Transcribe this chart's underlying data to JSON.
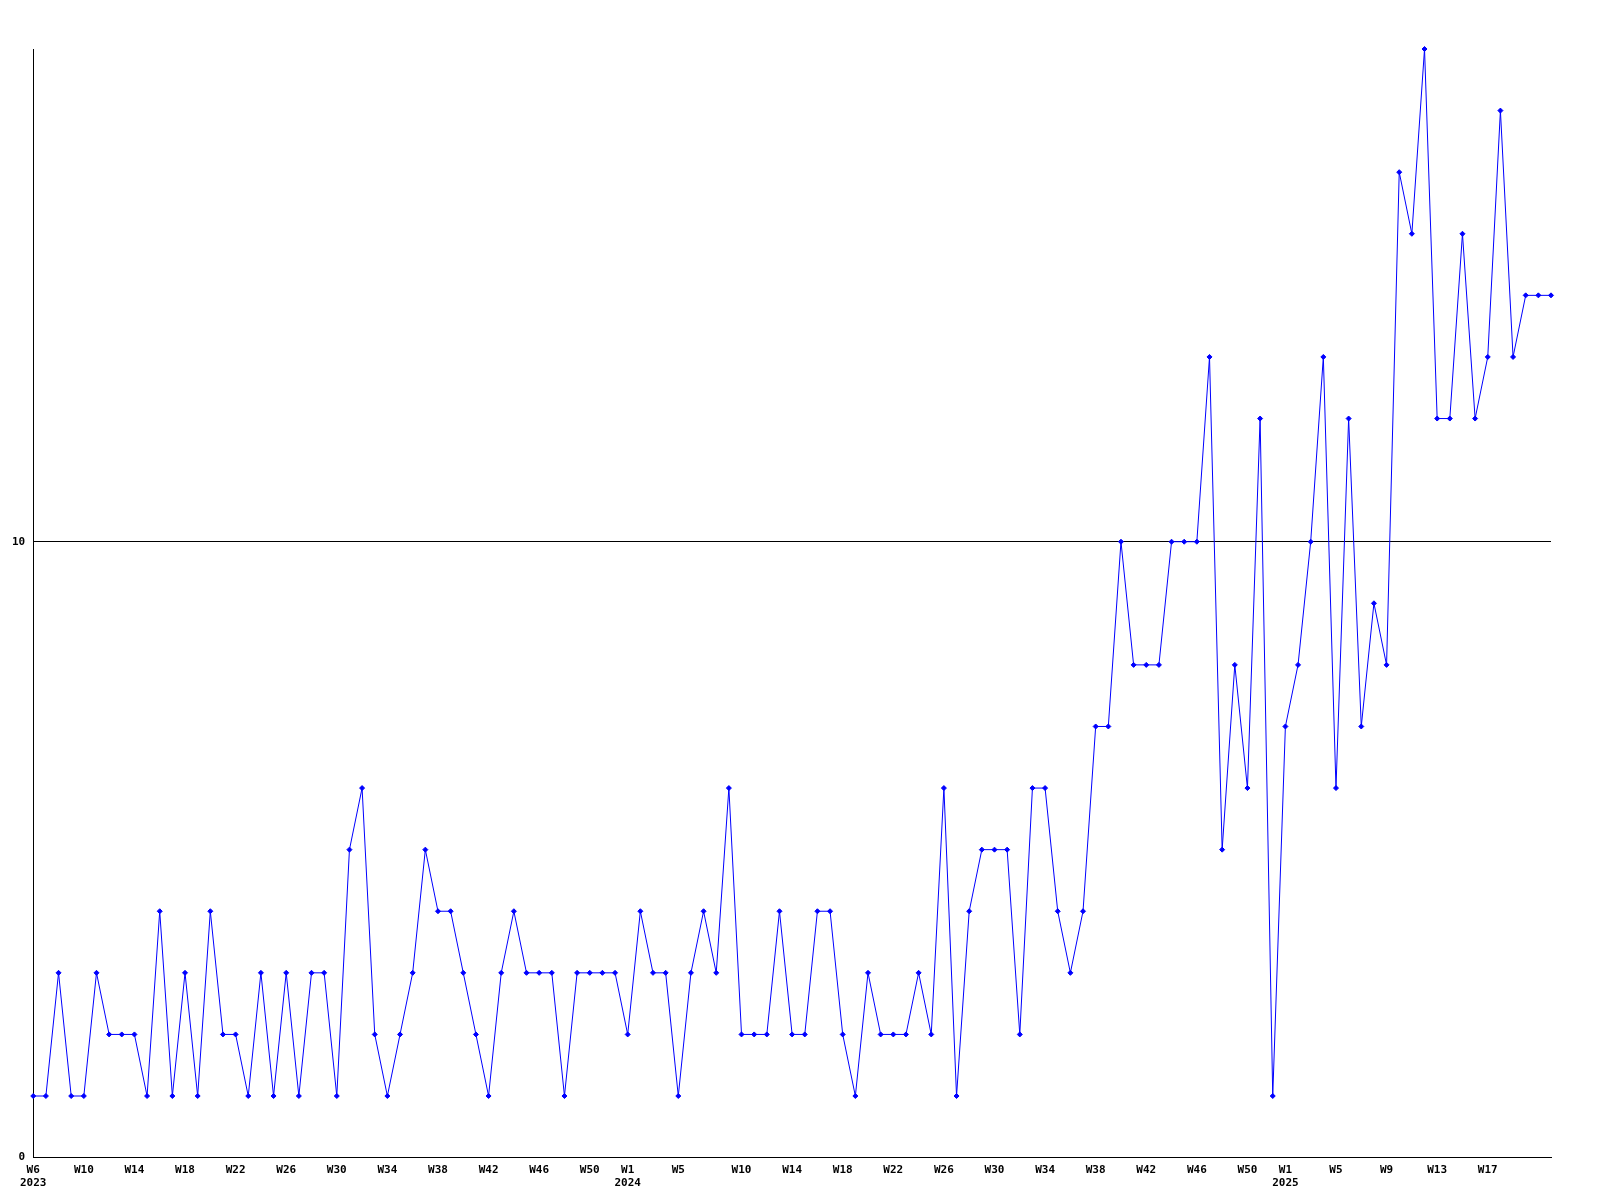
{
  "chart_data": {
    "type": "line",
    "categories": [
      "W6\n2023",
      null,
      null,
      null,
      "W10",
      null,
      null,
      null,
      "W14",
      null,
      null,
      null,
      "W18",
      null,
      null,
      null,
      "W22",
      null,
      null,
      null,
      "W26",
      null,
      null,
      null,
      "W30",
      null,
      null,
      null,
      "W34",
      null,
      null,
      null,
      "W38",
      null,
      null,
      null,
      "W42",
      null,
      null,
      null,
      "W46",
      null,
      null,
      null,
      "W50",
      null,
      null,
      "W1\n2024",
      null,
      null,
      null,
      "W5",
      null,
      null,
      null,
      null,
      "W10",
      null,
      null,
      null,
      "W14",
      null,
      null,
      null,
      "W18",
      null,
      null,
      null,
      "W22",
      null,
      null,
      null,
      "W26",
      null,
      null,
      null,
      "W30",
      null,
      null,
      null,
      "W34",
      null,
      null,
      null,
      "W38",
      null,
      null,
      null,
      "W42",
      null,
      null,
      null,
      "W46",
      null,
      null,
      null,
      "W50",
      null,
      null,
      "W1\n2025",
      null,
      null,
      null,
      "W5",
      null,
      null,
      null,
      "W9",
      null,
      null,
      null,
      "W13",
      null,
      null,
      null,
      "W17",
      null,
      null,
      null,
      null,
      null
    ],
    "series": [
      {
        "color": "#0000ff",
        "values": [
          1,
          1,
          3,
          1,
          1,
          3,
          2,
          2,
          2,
          1,
          4,
          1,
          3,
          1,
          4,
          2,
          2,
          1,
          3,
          1,
          3,
          1,
          3,
          3,
          1,
          5,
          6,
          2,
          1,
          2,
          3,
          5,
          4,
          4,
          3,
          2,
          1,
          3,
          4,
          3,
          3,
          3,
          1,
          3,
          3,
          3,
          3,
          2,
          4,
          3,
          3,
          1,
          3,
          4,
          3,
          6,
          2,
          2,
          2,
          4,
          2,
          2,
          4,
          4,
          2,
          1,
          3,
          2,
          2,
          2,
          3,
          2,
          6,
          1,
          4,
          5,
          5,
          5,
          2,
          6,
          6,
          4,
          3,
          4,
          7,
          7,
          10,
          8,
          8,
          8,
          10,
          10,
          10,
          13,
          5,
          8,
          6,
          12,
          1,
          7,
          8,
          10,
          13,
          6,
          12,
          7,
          9,
          8,
          16,
          15,
          18,
          12,
          12,
          15,
          12,
          13,
          17,
          13,
          14,
          14,
          14
        ]
      }
    ],
    "ylim": [
      0,
      18
    ],
    "yticks": [
      0,
      10
    ],
    "grid": "y",
    "legend": false,
    "marker": "diamond",
    "line_style": "solid"
  }
}
